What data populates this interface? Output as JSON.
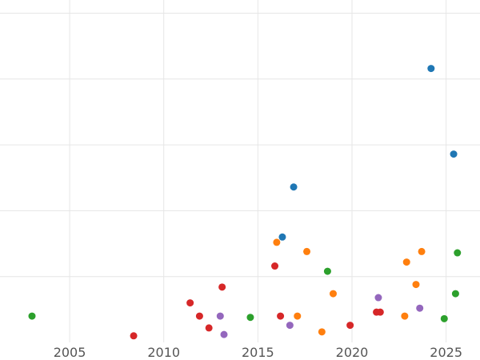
{
  "chart_data": {
    "type": "scatter",
    "title": "",
    "xlabel": "",
    "ylabel": "",
    "xlim": [
      2001.3,
      2026.8
    ],
    "ylim": [
      0,
      26
    ],
    "x_ticks": [
      2005,
      2010,
      2015,
      2020,
      2025
    ],
    "y_grid": [
      5,
      10,
      15,
      20,
      25
    ],
    "grid": true,
    "legend": "none",
    "series": [
      {
        "color": "#1f77b4",
        "points": [
          {
            "x": 2024.2,
            "y": 20.8
          },
          {
            "x": 2025.4,
            "y": 14.3
          },
          {
            "x": 2016.9,
            "y": 11.8
          },
          {
            "x": 2016.3,
            "y": 8.0
          }
        ]
      },
      {
        "color": "#ff7f0e",
        "points": [
          {
            "x": 2016.0,
            "y": 7.6
          },
          {
            "x": 2017.6,
            "y": 6.9
          },
          {
            "x": 2022.9,
            "y": 6.1
          },
          {
            "x": 2023.7,
            "y": 6.9
          },
          {
            "x": 2023.4,
            "y": 4.4
          },
          {
            "x": 2019.0,
            "y": 3.7
          },
          {
            "x": 2017.1,
            "y": 2.0
          },
          {
            "x": 2022.8,
            "y": 2.0
          },
          {
            "x": 2018.4,
            "y": 0.8
          }
        ]
      },
      {
        "color": "#2ca02c",
        "points": [
          {
            "x": 2003.0,
            "y": 2.0
          },
          {
            "x": 2014.6,
            "y": 1.9
          },
          {
            "x": 2018.7,
            "y": 5.4
          },
          {
            "x": 2025.6,
            "y": 6.8
          },
          {
            "x": 2025.5,
            "y": 3.7
          },
          {
            "x": 2024.9,
            "y": 1.8
          }
        ]
      },
      {
        "color": "#d62728",
        "points": [
          {
            "x": 2008.4,
            "y": 0.5
          },
          {
            "x": 2011.4,
            "y": 3.0
          },
          {
            "x": 2011.9,
            "y": 2.0
          },
          {
            "x": 2012.4,
            "y": 1.1
          },
          {
            "x": 2013.1,
            "y": 4.2
          },
          {
            "x": 2015.9,
            "y": 5.8
          },
          {
            "x": 2016.2,
            "y": 2.0
          },
          {
            "x": 2019.9,
            "y": 1.3
          },
          {
            "x": 2021.3,
            "y": 2.3
          },
          {
            "x": 2021.5,
            "y": 2.3
          }
        ]
      },
      {
        "color": "#9467bd",
        "points": [
          {
            "x": 2013.0,
            "y": 2.0
          },
          {
            "x": 2013.2,
            "y": 0.6
          },
          {
            "x": 2016.7,
            "y": 1.3
          },
          {
            "x": 2021.4,
            "y": 3.4
          },
          {
            "x": 2023.6,
            "y": 2.6
          }
        ]
      }
    ]
  }
}
